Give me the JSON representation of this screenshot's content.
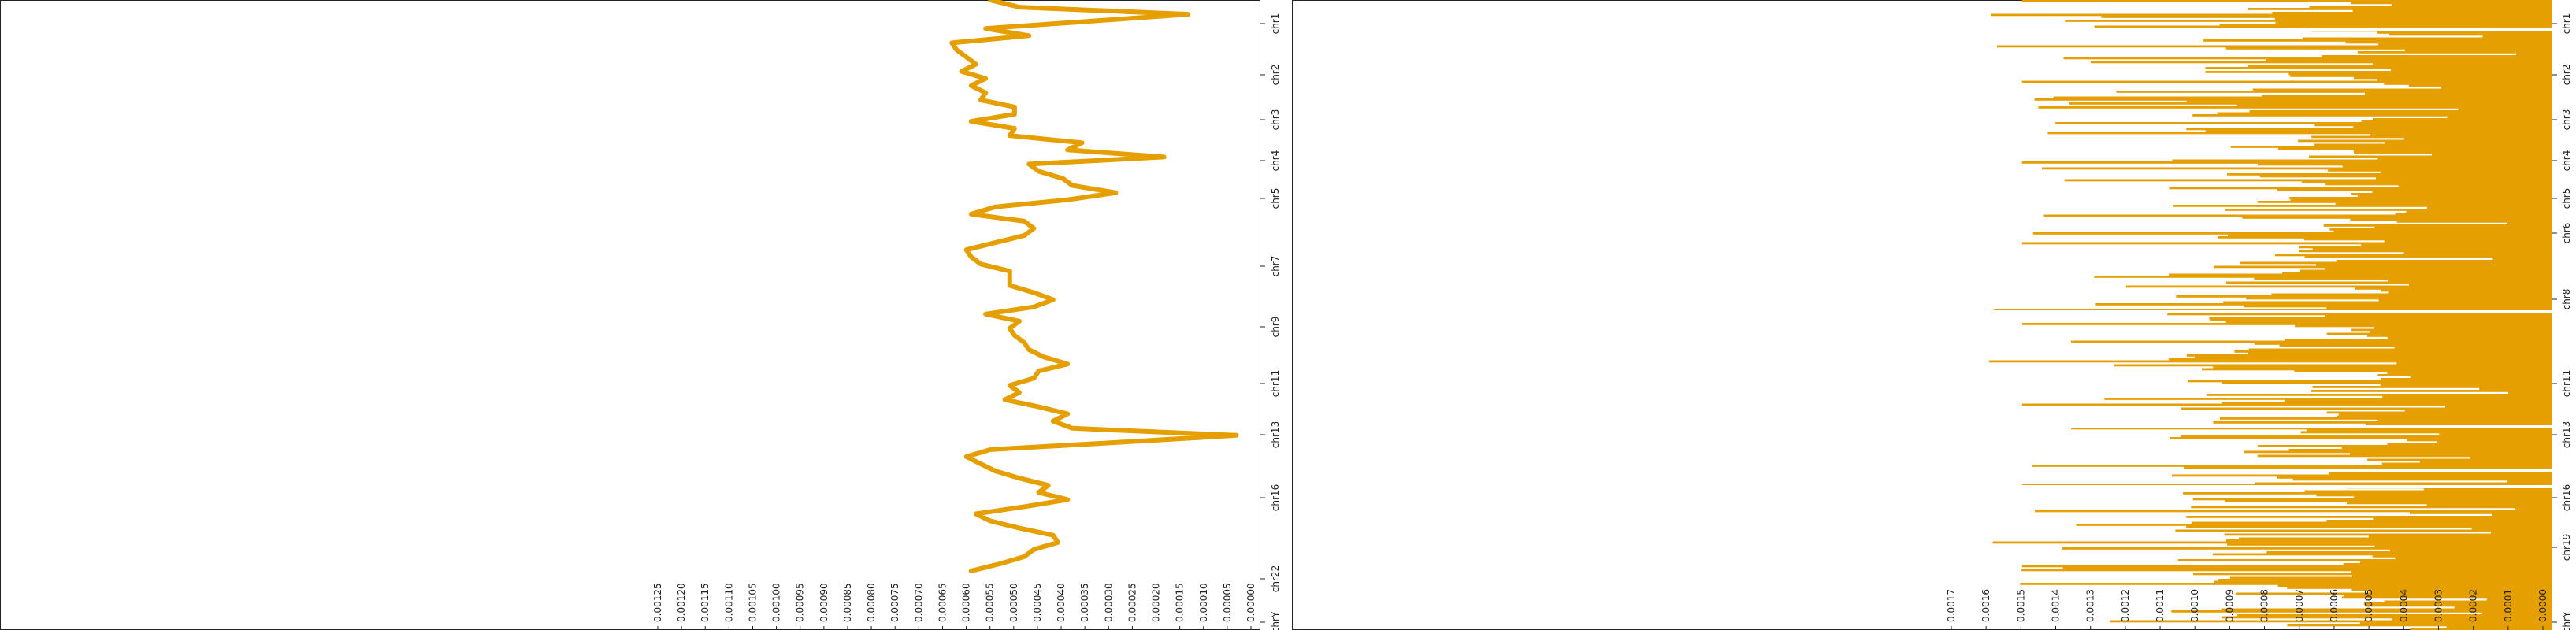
{
  "chart_data": [
    {
      "type": "line",
      "orientation": "rotated",
      "color": "#E69F00",
      "category_labels": [
        "chr1",
        "chr2",
        "chr3",
        "chr4",
        "chr5",
        "chr7",
        "chr9",
        "chr11",
        "chr13",
        "chr16",
        "chr22",
        "chrY"
      ],
      "value_tick_labels": [
        "0.00125",
        "0.00120",
        "0.00115",
        "0.00110",
        "0.00105",
        "0.00100",
        "0.00095",
        "0.00090",
        "0.00085",
        "0.00080",
        "0.00075",
        "0.00070",
        "0.00065",
        "0.00060",
        "0.00055",
        "0.00050",
        "0.00045",
        "0.00040",
        "0.00035",
        "0.00030",
        "0.00025",
        "0.00020",
        "0.00015",
        "0.00010",
        "0.00005",
        "0.00000"
      ],
      "value_range": [
        0.00125,
        0.0
      ],
      "profile": [
        [
          0.0002,
          0.00051
        ],
        [
          0.0004,
          0.00053
        ],
        [
          0.00055,
          0.00054
        ],
        [
          0.0006,
          0.00057
        ],
        [
          0.0007,
          0.00053
        ],
        [
          0.0009,
          0.00058
        ],
        [
          0.001,
          0.00042
        ],
        [
          0.00105,
          0.00041
        ],
        [
          0.0011,
          0.00059
        ],
        [
          0.0012,
          0.0
        ],
        [
          0.0013,
          0.00064
        ],
        [
          0.0014,
          0.00056
        ],
        [
          0.0015,
          0.00058
        ],
        [
          0.0016,
          0.00052
        ],
        [
          0.0017,
          0.00045
        ],
        [
          0.0018,
          0.00058
        ],
        [
          0.0019,
          0.00056
        ],
        [
          0.002,
          0.00056
        ],
        [
          0.0021,
          0.0005
        ],
        [
          0.0022,
          0.00015
        ],
        [
          0.0023,
          0.00036
        ],
        [
          0.0024,
          0.00057
        ],
        [
          0.0025,
          0.00048
        ],
        [
          0.0026,
          0.00064
        ],
        [
          0.0027,
          0.00063
        ],
        [
          0.0028,
          0.00061
        ],
        [
          0.0029,
          0.00059
        ],
        [
          0.003,
          0.00062
        ],
        [
          0.0031,
          0.00057
        ],
        [
          0.0032,
          0.0006
        ],
        [
          0.0033,
          0.00057
        ],
        [
          0.0034,
          0.00058
        ],
        [
          0.0035,
          0.00051
        ],
        [
          0.0036,
          0.00051
        ],
        [
          0.0037,
          0.0006
        ],
        [
          0.0038,
          0.00051
        ],
        [
          0.0039,
          0.00052
        ],
        [
          0.004,
          0.00037
        ],
        [
          0.0041,
          0.0004
        ],
        [
          0.0042,
          0.0002
        ],
        [
          0.0043,
          0.00048
        ],
        [
          0.0044,
          0.00046
        ],
        [
          0.0045,
          0.00041
        ],
        [
          0.0046,
          0.00039
        ],
        [
          0.0047,
          0.0003
        ],
        [
          0.0048,
          0.0004
        ],
        [
          0.0049,
          0.00055
        ],
        [
          0.005,
          0.0006
        ],
        [
          0.0051,
          0.00049
        ],
        [
          0.0052,
          0.00047
        ],
        [
          0.0053,
          0.00049
        ],
        [
          0.0054,
          0.00055
        ],
        [
          0.0055,
          0.00061
        ],
        [
          0.0056,
          0.0006
        ],
        [
          0.0057,
          0.00058
        ],
        [
          0.0058,
          0.00052
        ],
        [
          0.0059,
          0.00052
        ],
        [
          0.006,
          0.00052
        ],
        [
          0.0061,
          0.00047
        ],
        [
          0.0062,
          0.00043
        ],
        [
          0.0063,
          0.00047
        ],
        [
          0.0064,
          0.00057
        ],
        [
          0.0065,
          0.0005
        ],
        [
          0.0066,
          0.00052
        ],
        [
          0.0067,
          0.00051
        ],
        [
          0.0068,
          0.00049
        ],
        [
          0.0069,
          0.00048
        ],
        [
          0.007,
          0.00045
        ],
        [
          0.0071,
          0.0004
        ],
        [
          0.0072,
          0.00046
        ],
        [
          0.0073,
          0.00047
        ],
        [
          0.0074,
          0.00052
        ],
        [
          0.0075,
          0.0005
        ],
        [
          0.0076,
          0.00053
        ],
        [
          0.0077,
          0.00046
        ],
        [
          0.0078,
          0.0004
        ],
        [
          0.0079,
          0.00043
        ],
        [
          0.008,
          0.00039
        ],
        [
          0.0081,
          5e-05
        ],
        [
          0.0082,
          0.0003
        ],
        [
          0.0083,
          0.00056
        ],
        [
          0.0084,
          0.00061
        ],
        [
          0.0085,
          0.00058
        ],
        [
          0.0086,
          0.00055
        ],
        [
          0.0087,
          0.0005
        ],
        [
          0.0088,
          0.00044
        ],
        [
          0.0089,
          0.00046
        ],
        [
          0.009,
          0.0004
        ],
        [
          0.0091,
          0.00049
        ],
        [
          0.0092,
          0.00059
        ],
        [
          0.0093,
          0.00056
        ],
        [
          0.0094,
          0.0005
        ],
        [
          0.0095,
          0.00043
        ],
        [
          0.0096,
          0.00042
        ],
        [
          0.0097,
          0.00047
        ],
        [
          0.0098,
          0.00049
        ],
        [
          0.0099,
          0.00054
        ],
        [
          0.01,
          0.0006
        ]
      ]
    },
    {
      "type": "bar",
      "orientation": "rotated",
      "color": "#E69F00",
      "category_labels": [
        "chr1",
        "chr2",
        "chr3",
        "chr4",
        "chr5",
        "chr6",
        "chr8",
        "chr11",
        "chr13",
        "chr16",
        "chr19",
        "chrY"
      ],
      "value_tick_labels": [
        "0.0017",
        "0.0016",
        "0.0015",
        "0.0014",
        "0.0013",
        "0.0012",
        "0.0011",
        "0.0010",
        "0.0009",
        "0.0008",
        "0.0007",
        "0.0006",
        "0.0005",
        "0.0004",
        "0.0003",
        "0.0002",
        "0.0001",
        "0.0000"
      ],
      "value_range": [
        0.0017,
        0.0
      ],
      "bar_count": 320
    }
  ]
}
